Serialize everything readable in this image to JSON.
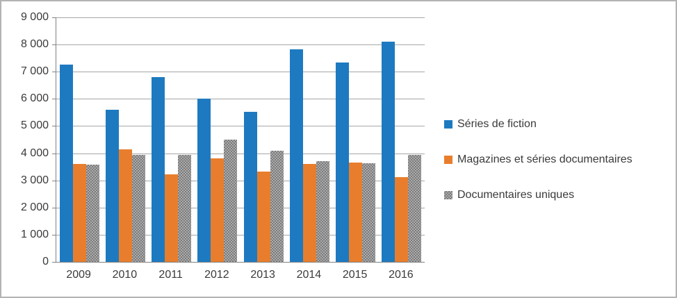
{
  "chart_data": {
    "type": "bar",
    "title": "",
    "xlabel": "",
    "ylabel": "",
    "categories": [
      "2009",
      "2010",
      "2011",
      "2012",
      "2013",
      "2014",
      "2015",
      "2016"
    ],
    "series": [
      {
        "name": "Séries de fiction",
        "color": "#1e7ac0",
        "pattern": "solid",
        "values": [
          7250,
          5590,
          6800,
          6000,
          5520,
          7830,
          7340,
          8100
        ]
      },
      {
        "name": "Magazines et séries documentaires",
        "color": "#e87e2d",
        "pattern": "solid",
        "values": [
          3600,
          4150,
          3220,
          3820,
          3330,
          3610,
          3650,
          3130
        ]
      },
      {
        "name": "Documentaires uniques",
        "color": "#acacac",
        "pattern": "dotted",
        "pattern_color": "#7b7b7b",
        "values": [
          3570,
          3950,
          3950,
          4500,
          4080,
          3700,
          3640,
          3950
        ]
      }
    ],
    "ylim": [
      0,
      9000
    ],
    "ytick_step": 1000,
    "ytick_labels": [
      "0",
      "1 000",
      "2 000",
      "3 000",
      "4 000",
      "5 000",
      "6 000",
      "7 000",
      "8 000",
      "9 000"
    ],
    "grid": true,
    "legend_position": "right"
  },
  "styles": {
    "gridline_color": "#a6a6a6",
    "axis_color": "#808080",
    "text_color": "#3a3a3a",
    "background": "#ffffff",
    "border_color": "#b3b3b3"
  }
}
